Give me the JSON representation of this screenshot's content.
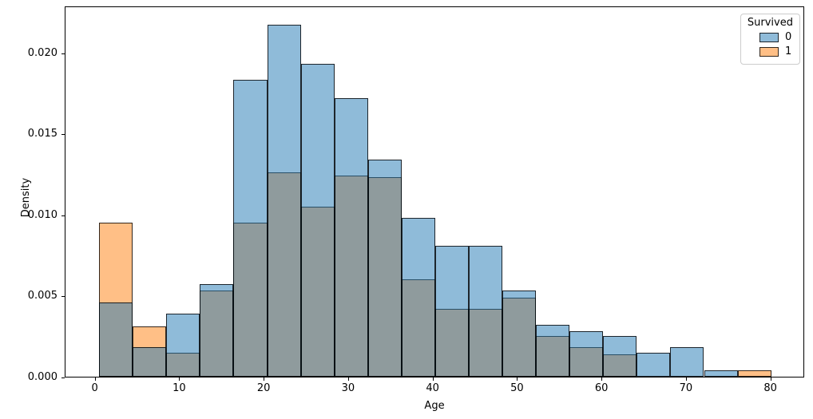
{
  "chart_data": {
    "type": "histogram",
    "title": "",
    "xlabel": "Age",
    "ylabel": "Density",
    "x_ticks": [
      0,
      10,
      20,
      30,
      40,
      50,
      60,
      70,
      80
    ],
    "y_ticks": [
      {
        "value": 0.0,
        "label": "0.000"
      },
      {
        "value": 0.005,
        "label": "0.005"
      },
      {
        "value": 0.01,
        "label": "0.010"
      },
      {
        "value": 0.015,
        "label": "0.015"
      },
      {
        "value": 0.02,
        "label": "0.020"
      }
    ],
    "xlim": [
      -3.56,
      84.0
    ],
    "ylim": [
      0,
      0.0229
    ],
    "grid": false,
    "bar_alpha": 0.5,
    "bin_edges": [
      0.42,
      4.4,
      8.38,
      12.36,
      16.34,
      20.32,
      24.29,
      28.27,
      32.25,
      36.23,
      40.21,
      44.19,
      48.17,
      52.15,
      56.13,
      60.11,
      64.08,
      68.06,
      72.04,
      76.02,
      80.0
    ],
    "series": [
      {
        "name": "1",
        "color": "#ff7f0e",
        "densities": [
          0.0095,
          0.0031,
          0.0015,
          0.0053,
          0.0095,
          0.0126,
          0.0105,
          0.0124,
          0.0123,
          0.006,
          0.0042,
          0.0042,
          0.0049,
          0.0025,
          0.0018,
          0.0014,
          0.0,
          0.0,
          0.0,
          0.0004
        ]
      },
      {
        "name": "0",
        "color": "#1f77b4",
        "densities": [
          0.0046,
          0.0018,
          0.0039,
          0.0057,
          0.0183,
          0.0217,
          0.0193,
          0.0172,
          0.0134,
          0.0098,
          0.0081,
          0.0081,
          0.0053,
          0.0032,
          0.0028,
          0.0025,
          0.0015,
          0.0018,
          0.0004,
          0.0
        ]
      }
    ],
    "legend": {
      "title": "Survived",
      "position": "upper right",
      "entries": [
        {
          "label": "0",
          "color": "#1f77b4"
        },
        {
          "label": "1",
          "color": "#ff7f0e"
        }
      ]
    }
  }
}
